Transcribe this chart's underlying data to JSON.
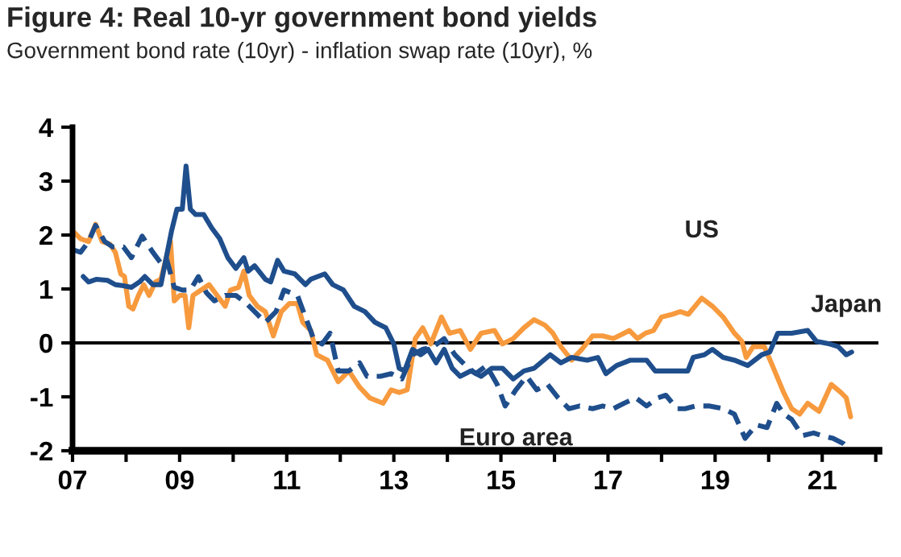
{
  "chart_data": {
    "type": "line",
    "title": "Figure 4: Real 10-yr government bond yields",
    "subtitle": "Government bond rate (10yr) - inflation swap rate (10yr), %",
    "xlim": [
      2007,
      2022.05
    ],
    "xticks": [
      {
        "value": 2007,
        "label": "07"
      },
      {
        "value": 2008,
        "label": null
      },
      {
        "value": 2009,
        "label": "09"
      },
      {
        "value": 2010,
        "label": null
      },
      {
        "value": 2011,
        "label": "11"
      },
      {
        "value": 2012,
        "label": null
      },
      {
        "value": 2013,
        "label": "13"
      },
      {
        "value": 2014,
        "label": null
      },
      {
        "value": 2015,
        "label": "15"
      },
      {
        "value": 2016,
        "label": null
      },
      {
        "value": 2017,
        "label": "17"
      },
      {
        "value": 2018,
        "label": null
      },
      {
        "value": 2019,
        "label": "19"
      },
      {
        "value": 2020,
        "label": null
      },
      {
        "value": 2021,
        "label": "21"
      },
      {
        "value": 2022,
        "label": null
      }
    ],
    "ylim": [
      -2,
      4
    ],
    "yticks": [
      -2,
      -1,
      0,
      1,
      2,
      3,
      4
    ],
    "grid": false,
    "legend": false,
    "marker": "none",
    "ref_lines": [
      {
        "axis": "y",
        "value": 0,
        "label": null,
        "color": "#000000"
      }
    ],
    "series": [
      {
        "name": "US",
        "color": "#f79a3e",
        "line_style": "solid",
        "x": [
          2007.0,
          2007.15,
          2007.3,
          2007.43,
          2007.55,
          2007.7,
          2007.8,
          2007.9,
          2007.97,
          2008.05,
          2008.13,
          2008.23,
          2008.33,
          2008.43,
          2008.55,
          2008.65,
          2008.75,
          2008.83,
          2008.9,
          2009.0,
          2009.1,
          2009.17,
          2009.25,
          2009.4,
          2009.55,
          2009.7,
          2009.85,
          2009.95,
          2010.1,
          2010.2,
          2010.3,
          2010.45,
          2010.6,
          2010.75,
          2010.9,
          2011.05,
          2011.2,
          2011.3,
          2011.45,
          2011.56,
          2011.76,
          2011.96,
          2012.16,
          2012.36,
          2012.55,
          2012.8,
          2012.95,
          2013.1,
          2013.25,
          2013.4,
          2013.54,
          2013.69,
          2013.89,
          2014.04,
          2014.24,
          2014.43,
          2014.63,
          2014.88,
          2015.03,
          2015.23,
          2015.43,
          2015.62,
          2015.82,
          2015.97,
          2016.12,
          2016.32,
          2016.51,
          2016.71,
          2016.9,
          2017.1,
          2017.3,
          2017.4,
          2017.55,
          2017.7,
          2017.85,
          2018.0,
          2018.2,
          2018.35,
          2018.5,
          2018.75,
          2018.95,
          2019.15,
          2019.36,
          2019.5,
          2019.58,
          2019.71,
          2019.92,
          2020.07,
          2020.28,
          2020.43,
          2020.58,
          2020.73,
          2020.94,
          2021.17,
          2021.35,
          2021.45,
          2021.53
        ],
        "values": [
          2.08,
          1.93,
          1.88,
          2.2,
          1.88,
          1.83,
          1.68,
          1.28,
          1.23,
          0.68,
          0.63,
          0.88,
          1.08,
          0.88,
          1.13,
          1.18,
          1.58,
          1.88,
          0.78,
          0.88,
          0.88,
          0.28,
          0.88,
          0.98,
          1.08,
          0.88,
          0.68,
          0.98,
          1.03,
          1.33,
          0.88,
          0.68,
          0.58,
          0.13,
          0.58,
          0.73,
          0.73,
          0.38,
          0.23,
          -0.22,
          -0.32,
          -0.72,
          -0.52,
          -0.82,
          -1.02,
          -1.12,
          -0.87,
          -0.92,
          -0.87,
          0.08,
          0.28,
          -0.02,
          0.48,
          0.18,
          0.23,
          -0.12,
          0.18,
          0.23,
          -0.02,
          0.08,
          0.28,
          0.43,
          0.33,
          0.18,
          -0.07,
          -0.32,
          -0.12,
          0.13,
          0.13,
          0.08,
          0.18,
          0.23,
          0.08,
          0.18,
          0.23,
          0.48,
          0.53,
          0.58,
          0.53,
          0.83,
          0.68,
          0.48,
          0.18,
          0.03,
          -0.27,
          -0.07,
          -0.07,
          -0.42,
          -0.92,
          -1.22,
          -1.32,
          -1.12,
          -1.27,
          -0.77,
          -0.92,
          -1.02,
          -1.37
        ]
      },
      {
        "name": "Japan",
        "color": "#1f4e8c",
        "line_style": "solid",
        "x": [
          2007.2,
          2007.3,
          2007.45,
          2007.65,
          2007.8,
          2007.95,
          2008.1,
          2008.25,
          2008.35,
          2008.5,
          2008.65,
          2008.75,
          2008.85,
          2008.95,
          2009.05,
          2009.12,
          2009.2,
          2009.3,
          2009.45,
          2009.6,
          2009.75,
          2009.9,
          2010.05,
          2010.2,
          2010.28,
          2010.4,
          2010.6,
          2010.7,
          2010.83,
          2010.95,
          2011.15,
          2011.35,
          2011.45,
          2011.71,
          2011.86,
          2012.06,
          2012.26,
          2012.46,
          2012.65,
          2012.85,
          2013.0,
          2013.1,
          2013.2,
          2013.35,
          2013.5,
          2013.64,
          2013.79,
          2013.94,
          2014.09,
          2014.24,
          2014.44,
          2014.63,
          2014.83,
          2015.03,
          2015.23,
          2015.43,
          2015.62,
          2015.92,
          2016.12,
          2016.32,
          2016.61,
          2016.81,
          2016.96,
          2017.16,
          2017.42,
          2017.72,
          2017.88,
          2018.23,
          2018.49,
          2018.59,
          2018.8,
          2018.95,
          2019.15,
          2019.36,
          2019.61,
          2019.87,
          2020.02,
          2020.17,
          2020.43,
          2020.73,
          2020.89,
          2021.14,
          2021.3,
          2021.45,
          2021.55
        ],
        "values": [
          1.23,
          1.13,
          1.18,
          1.16,
          1.08,
          1.06,
          1.03,
          1.13,
          1.23,
          1.08,
          1.08,
          1.58,
          2.08,
          2.48,
          2.48,
          3.28,
          2.48,
          2.38,
          2.38,
          2.13,
          1.93,
          1.58,
          1.38,
          1.58,
          1.33,
          1.43,
          1.18,
          1.13,
          1.53,
          1.33,
          1.28,
          1.08,
          1.18,
          1.28,
          1.08,
          0.98,
          0.68,
          0.58,
          0.38,
          0.28,
          -0.02,
          -0.47,
          -0.52,
          -0.12,
          -0.22,
          -0.12,
          -0.37,
          -0.12,
          -0.47,
          -0.62,
          -0.52,
          -0.62,
          -0.47,
          -0.47,
          -0.67,
          -0.52,
          -0.47,
          -0.22,
          -0.37,
          -0.27,
          -0.32,
          -0.27,
          -0.57,
          -0.42,
          -0.32,
          -0.32,
          -0.52,
          -0.52,
          -0.52,
          -0.27,
          -0.22,
          -0.12,
          -0.27,
          -0.32,
          -0.42,
          -0.22,
          -0.17,
          0.18,
          0.18,
          0.23,
          0.03,
          -0.02,
          -0.07,
          -0.22,
          -0.17
        ]
      },
      {
        "name": "Euro area",
        "color": "#1f4e8c",
        "line_style": "dashed",
        "x": [
          2007.0,
          2007.15,
          2007.3,
          2007.43,
          2007.6,
          2007.75,
          2007.95,
          2008.1,
          2008.3,
          2008.5,
          2008.65,
          2008.75,
          2008.9,
          2009.05,
          2009.2,
          2009.35,
          2009.5,
          2009.65,
          2009.85,
          2010.05,
          2010.25,
          2010.4,
          2010.6,
          2010.8,
          2010.95,
          2011.2,
          2011.35,
          2011.5,
          2011.66,
          2011.81,
          2011.96,
          2012.16,
          2012.36,
          2012.5,
          2012.75,
          2012.95,
          2013.15,
          2013.35,
          2013.54,
          2013.74,
          2013.94,
          2014.14,
          2014.34,
          2014.53,
          2014.73,
          2014.93,
          2015.08,
          2015.28,
          2015.48,
          2015.67,
          2015.87,
          2016.07,
          2016.27,
          2016.47,
          2016.71,
          2016.9,
          2017.1,
          2017.3,
          2017.52,
          2017.72,
          2017.93,
          2018.08,
          2018.29,
          2018.44,
          2018.64,
          2018.9,
          2019.15,
          2019.36,
          2019.56,
          2019.77,
          2019.97,
          2020.15,
          2020.28,
          2020.43,
          2020.63,
          2020.84,
          2020.99,
          2021.2,
          2021.4,
          2021.5
        ],
        "values": [
          1.73,
          1.68,
          1.88,
          2.18,
          1.88,
          1.78,
          1.78,
          1.58,
          1.98,
          1.68,
          1.48,
          1.58,
          1.03,
          0.98,
          0.98,
          1.23,
          0.93,
          0.78,
          0.88,
          0.88,
          0.73,
          0.58,
          0.38,
          0.58,
          0.98,
          0.88,
          0.48,
          0.08,
          -0.02,
          0.18,
          -0.52,
          -0.52,
          -0.37,
          -0.62,
          -0.62,
          -0.57,
          -0.67,
          -0.22,
          -0.12,
          -0.07,
          0.08,
          -0.22,
          -0.42,
          -0.57,
          -0.42,
          -0.77,
          -1.17,
          -0.87,
          -0.62,
          -0.87,
          -0.77,
          -1.02,
          -1.22,
          -1.17,
          -1.22,
          -1.17,
          -1.22,
          -1.12,
          -1.02,
          -1.17,
          -1.02,
          -0.97,
          -1.22,
          -1.22,
          -1.17,
          -1.17,
          -1.22,
          -1.32,
          -1.77,
          -1.52,
          -1.57,
          -1.12,
          -1.32,
          -1.42,
          -1.72,
          -1.67,
          -1.72,
          -1.77,
          -1.87,
          -1.97
        ]
      }
    ]
  }
}
